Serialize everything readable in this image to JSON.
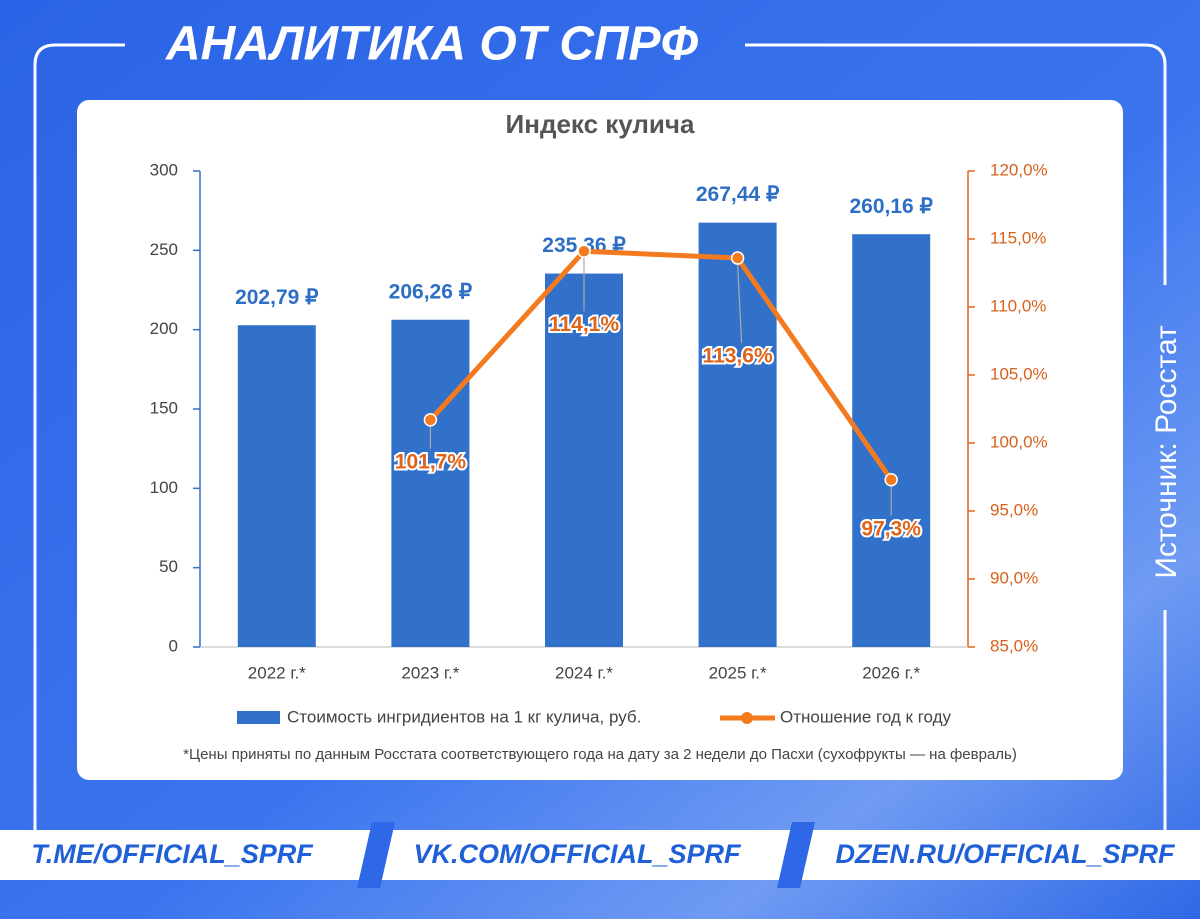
{
  "header": {
    "title": "АНАЛИТИКА ОТ СПРФ"
  },
  "source": "Источник: Росстат",
  "footer": [
    "T.ME/OFFICIAL_SPRF",
    "VK.COM/OFFICIAL_SPRF",
    "DZEN.RU/OFFICIAL_SPRF"
  ],
  "chart_data": {
    "type": "bar",
    "title": "Индекс кулича",
    "categories": [
      "2022 г.*",
      "2023 г.*",
      "2024 г.*",
      "2025 г.*",
      "2026 г.*"
    ],
    "series": [
      {
        "name": "Стоимость ингридиентов на 1 кг кулича, руб.",
        "color": "#3171c9",
        "values": [
          202.79,
          206.26,
          235.36,
          267.44,
          260.16
        ],
        "value_labels": [
          "202,79 ₽",
          "206,26 ₽",
          "235,36 ₽",
          "267,44 ₽",
          "260,16 ₽"
        ]
      },
      {
        "name": "Отношение год к году",
        "type": "line",
        "axis": "y2",
        "color": "#f37a1f",
        "values": [
          null,
          101.7,
          114.1,
          113.6,
          97.3
        ],
        "value_labels": [
          null,
          "101,7%",
          "114,1%",
          "113,6%",
          "97,3%"
        ]
      }
    ],
    "ylim": [
      0,
      300
    ],
    "yticks": [
      0,
      50,
      100,
      150,
      200,
      250,
      300
    ],
    "y2lim": [
      85,
      120
    ],
    "y2ticks": [
      {
        "value": 85,
        "label": "85,0%"
      },
      {
        "value": 90,
        "label": "90,0%"
      },
      {
        "value": 95,
        "label": "95,0%"
      },
      {
        "value": 100,
        "label": "100,0%"
      },
      {
        "value": 105,
        "label": "105,0%"
      },
      {
        "value": 110,
        "label": "110,0%"
      },
      {
        "value": 115,
        "label": "115,0%"
      },
      {
        "value": 120,
        "label": "120,0%"
      }
    ],
    "footnote": "*Цены приняты по данным Росстата соответствующего года на дату за 2 недели до Пасхи (сухофрукты — на февраль)"
  }
}
